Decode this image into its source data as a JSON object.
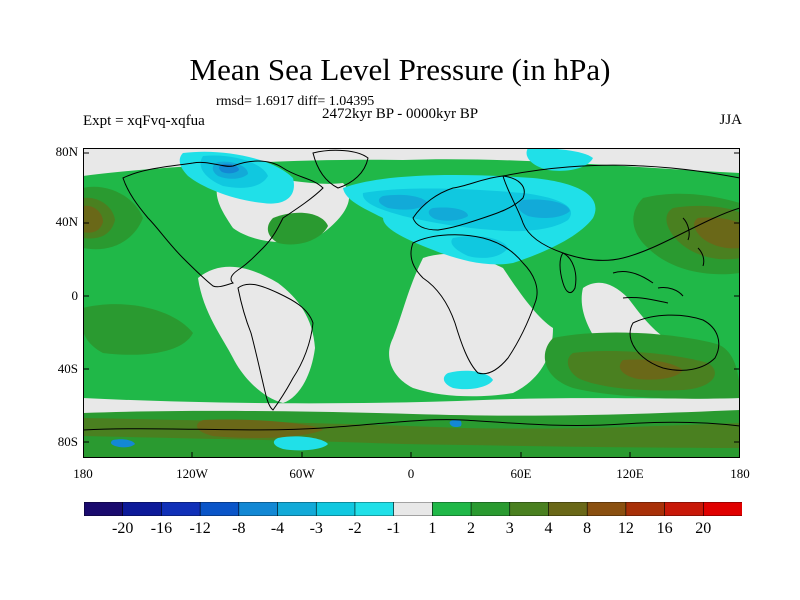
{
  "title": "Mean Sea Level Pressure (in hPa)",
  "stats_line": "rmsd= 1.6917 diff= 1.04395",
  "period_line": "2472kyr BP - 0000kyr BP",
  "experiment": "Expt = xqFvq-xqfua",
  "season": "JJA",
  "y_ticks": [
    "80N",
    "40N",
    "0",
    "40S",
    "80S"
  ],
  "x_ticks": [
    "180",
    "120W",
    "60W",
    "0",
    "60E",
    "120E",
    "180"
  ],
  "colorbar": {
    "labels": [
      "-20",
      "-16",
      "-12",
      "-8",
      "-4",
      "-3",
      "-2",
      "-1",
      "1",
      "2",
      "3",
      "4",
      "8",
      "12",
      "16",
      "20"
    ],
    "colors": [
      "#1a0a6e",
      "#0d1a99",
      "#1030b8",
      "#0a55c8",
      "#1388d4",
      "#12aad8",
      "#10c8e0",
      "#20e0e8",
      "#e8e8e8",
      "#20b848",
      "#2a9a30",
      "#4a8020",
      "#6a6818",
      "#8a5010",
      "#a83008",
      "#c81808",
      "#e00000"
    ]
  },
  "map_fill_colors": {
    "ocean_base": "#20b848",
    "land_neutral": "#e8e8e8",
    "positive_2": "#2a9a30",
    "positive_3": "#4a8020",
    "positive_4": "#6a6818",
    "negative_1": "#20e0e8",
    "negative_2": "#10c8e0",
    "negative_3": "#12aad8",
    "negative_4": "#1388d4",
    "coastline": "#000000"
  }
}
